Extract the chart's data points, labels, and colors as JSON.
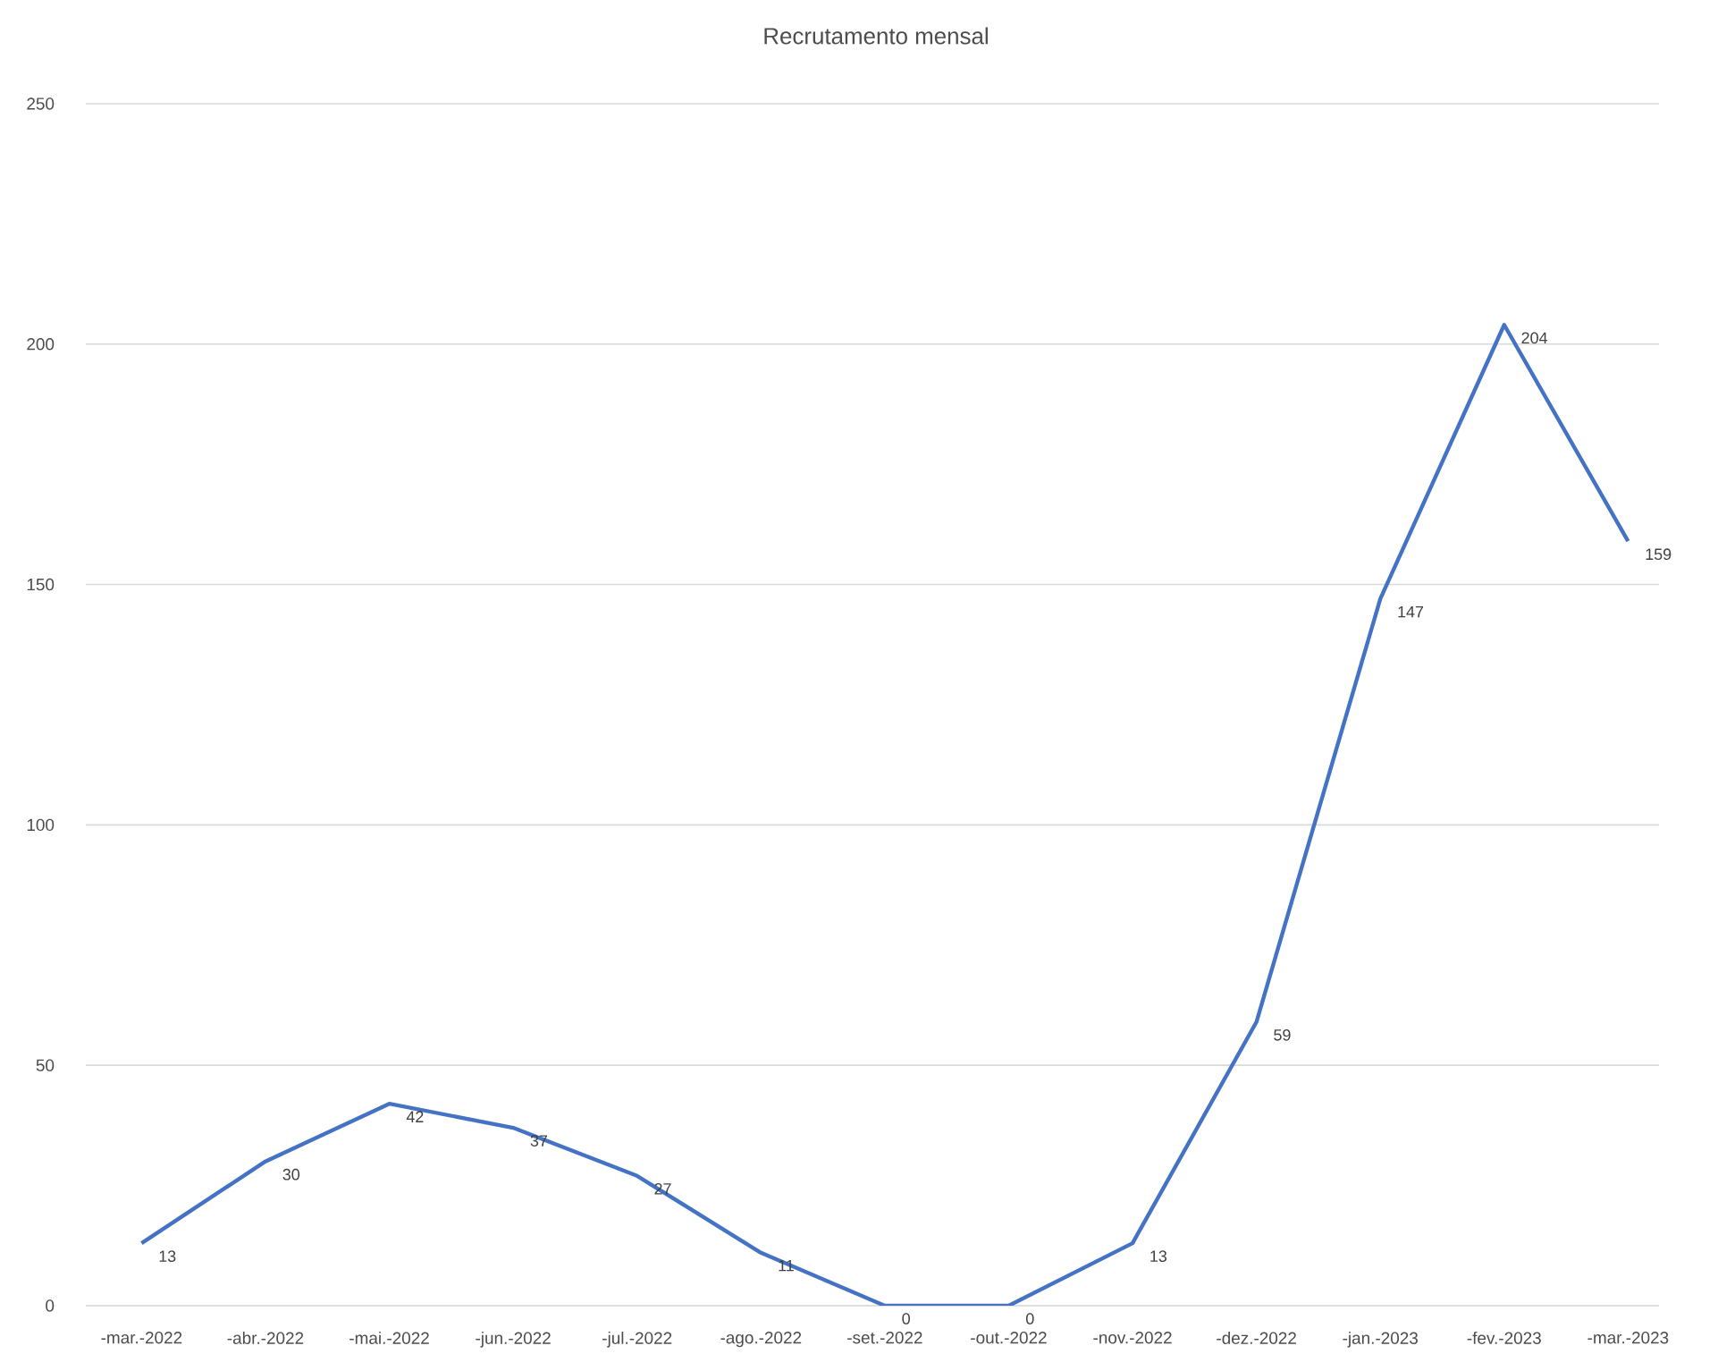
{
  "chart_data": {
    "type": "line",
    "title": "Recrutamento mensal",
    "categories": [
      "-mar.-2022",
      "-abr.-2022",
      "-mai.-2022",
      "-jun.-2022",
      "-jul.-2022",
      "-ago.-2022",
      "-set.-2022",
      "-out.-2022",
      "-nov.-2022",
      "-dez.-2022",
      "-jan.-2023",
      "-fev.-2023",
      "-mar.-2023"
    ],
    "values": [
      13,
      30,
      42,
      37,
      27,
      11,
      0,
      0,
      13,
      59,
      147,
      204,
      159
    ],
    "color": "#4472c4",
    "ylim": [
      0,
      250
    ],
    "yticks": [
      0,
      50,
      100,
      150,
      200,
      250
    ],
    "grid": "y",
    "data_labels": true,
    "marker": "none",
    "line_style": "solid"
  }
}
